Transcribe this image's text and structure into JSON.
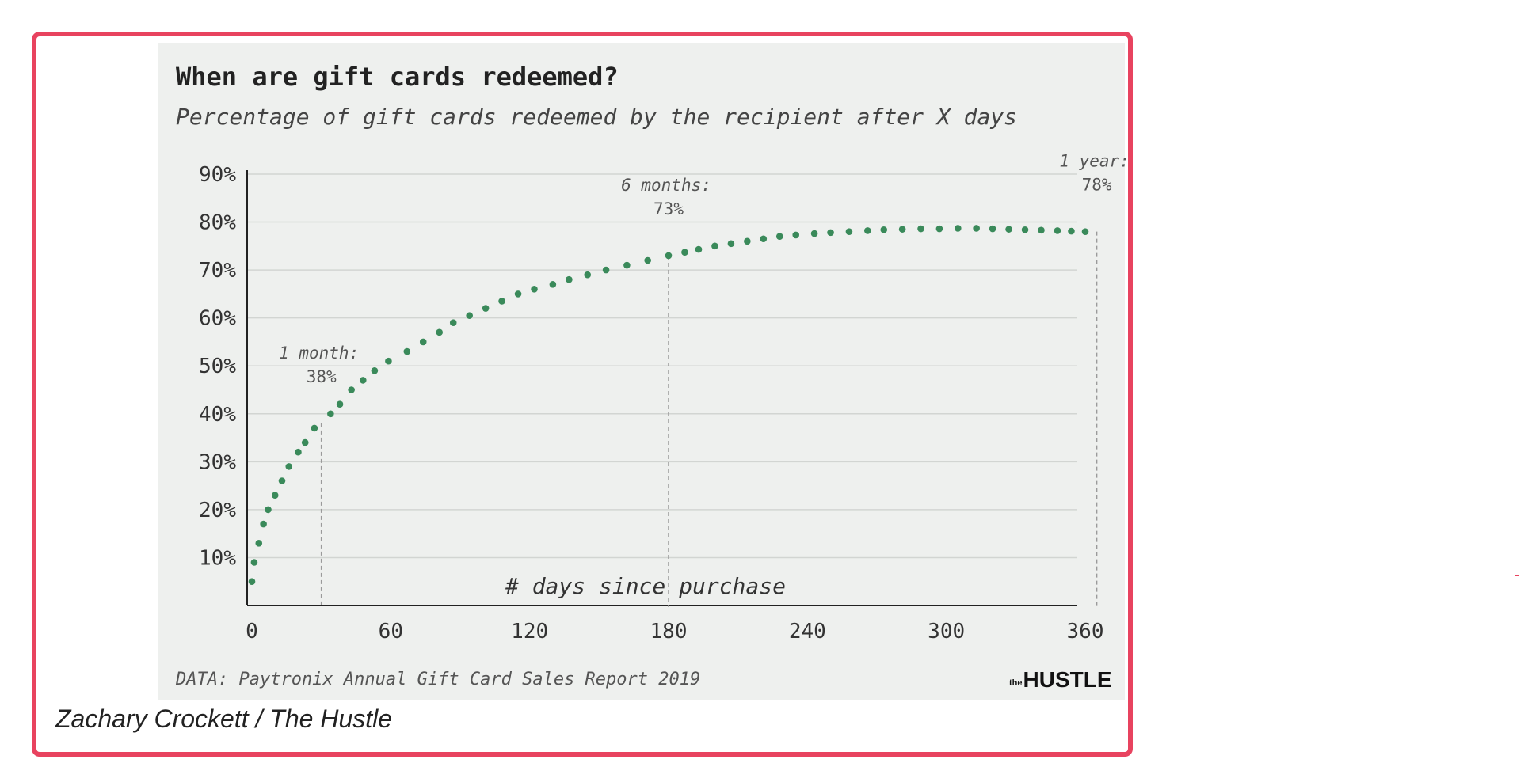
{
  "chart_data": {
    "type": "scatter",
    "title": "When are gift cards redeemed?",
    "subtitle": "Percentage of gift cards redeemed by the recipient after X days",
    "xlabel": "# days since purchase",
    "ylabel": "",
    "xlim": [
      0,
      360
    ],
    "ylim": [
      0,
      90
    ],
    "x_ticks": [
      "0",
      "60",
      "120",
      "180",
      "240",
      "300",
      "360"
    ],
    "x_tick_values": [
      0,
      60,
      120,
      180,
      240,
      300,
      360
    ],
    "y_ticks": [
      "10%",
      "20%",
      "30%",
      "40%",
      "50%",
      "60%",
      "70%",
      "80%",
      "90%"
    ],
    "y_tick_values": [
      10,
      20,
      30,
      40,
      50,
      60,
      70,
      80,
      90
    ],
    "grid": true,
    "marker_color": "#3a8a5a",
    "points": [
      {
        "x": 0,
        "y": 5
      },
      {
        "x": 1,
        "y": 9
      },
      {
        "x": 3,
        "y": 13
      },
      {
        "x": 5,
        "y": 17
      },
      {
        "x": 7,
        "y": 20
      },
      {
        "x": 10,
        "y": 23
      },
      {
        "x": 13,
        "y": 26
      },
      {
        "x": 16,
        "y": 29
      },
      {
        "x": 20,
        "y": 32
      },
      {
        "x": 23,
        "y": 34
      },
      {
        "x": 27,
        "y": 37
      },
      {
        "x": 34,
        "y": 40
      },
      {
        "x": 38,
        "y": 42
      },
      {
        "x": 43,
        "y": 45
      },
      {
        "x": 48,
        "y": 47
      },
      {
        "x": 53,
        "y": 49
      },
      {
        "x": 59,
        "y": 51
      },
      {
        "x": 67,
        "y": 53
      },
      {
        "x": 74,
        "y": 55
      },
      {
        "x": 81,
        "y": 57
      },
      {
        "x": 87,
        "y": 59
      },
      {
        "x": 94,
        "y": 60.5
      },
      {
        "x": 101,
        "y": 62
      },
      {
        "x": 108,
        "y": 63.5
      },
      {
        "x": 115,
        "y": 65
      },
      {
        "x": 122,
        "y": 66
      },
      {
        "x": 130,
        "y": 67
      },
      {
        "x": 137,
        "y": 68
      },
      {
        "x": 145,
        "y": 69
      },
      {
        "x": 153,
        "y": 70
      },
      {
        "x": 162,
        "y": 71
      },
      {
        "x": 171,
        "y": 72
      },
      {
        "x": 180,
        "y": 73
      },
      {
        "x": 187,
        "y": 73.7
      },
      {
        "x": 193,
        "y": 74.3
      },
      {
        "x": 200,
        "y": 75
      },
      {
        "x": 207,
        "y": 75.5
      },
      {
        "x": 214,
        "y": 76
      },
      {
        "x": 221,
        "y": 76.5
      },
      {
        "x": 228,
        "y": 77
      },
      {
        "x": 235,
        "y": 77.3
      },
      {
        "x": 243,
        "y": 77.6
      },
      {
        "x": 250,
        "y": 77.8
      },
      {
        "x": 258,
        "y": 78
      },
      {
        "x": 266,
        "y": 78.2
      },
      {
        "x": 273,
        "y": 78.4
      },
      {
        "x": 281,
        "y": 78.5
      },
      {
        "x": 289,
        "y": 78.6
      },
      {
        "x": 297,
        "y": 78.6
      },
      {
        "x": 305,
        "y": 78.7
      },
      {
        "x": 313,
        "y": 78.7
      },
      {
        "x": 320,
        "y": 78.6
      },
      {
        "x": 327,
        "y": 78.5
      },
      {
        "x": 334,
        "y": 78.4
      },
      {
        "x": 341,
        "y": 78.3
      },
      {
        "x": 348,
        "y": 78.2
      },
      {
        "x": 354,
        "y": 78.1
      },
      {
        "x": 360,
        "y": 78
      }
    ],
    "annotations": [
      {
        "x": 30,
        "y": 38,
        "label": "1 month:",
        "value": "38%"
      },
      {
        "x": 180,
        "y": 73,
        "label": "6 months:",
        "value": "73%"
      },
      {
        "x": 365,
        "y": 78,
        "label": "1 year:",
        "value": "78%"
      }
    ]
  },
  "source_note": "DATA: Paytronix Annual Gift Card Sales Report 2019",
  "brand_logo_text": "the HUSTLE",
  "caption": "Zachary Crockett / The Hustle",
  "colors": {
    "frame_border": "#e8435f",
    "panel_background": "#eef0ee",
    "marker": "#3a8a5a"
  }
}
